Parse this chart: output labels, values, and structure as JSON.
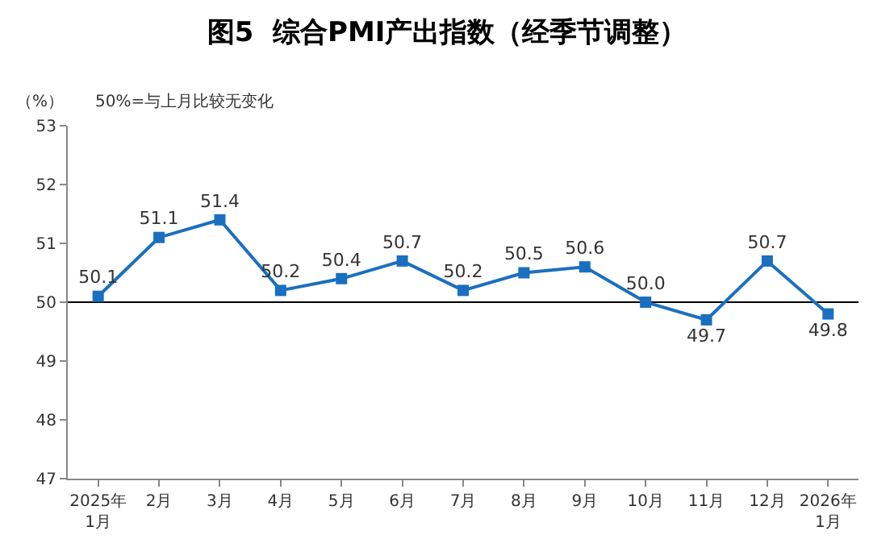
{
  "chart_data": {
    "type": "line",
    "title": "图5  综合PMI产出指数（经季节调整）",
    "ylabel": "（%）",
    "subtitle": "50%=与上月比较无变化",
    "categories": [
      "2025年\n1月",
      "2月",
      "3月",
      "4月",
      "5月",
      "6月",
      "7月",
      "8月",
      "9月",
      "10月",
      "11月",
      "12月",
      "2026年\n1月"
    ],
    "series": [
      {
        "color": "#1a6fc0",
        "values": [
          50.1,
          51.1,
          51.4,
          50.2,
          50.4,
          50.7,
          50.2,
          50.5,
          50.6,
          50.0,
          49.7,
          50.7,
          49.8
        ],
        "value_labels": [
          "50.1",
          "51.1",
          "51.4",
          "50.2",
          "50.4",
          "50.7",
          "50.2",
          "50.5",
          "50.6",
          "50.0",
          "49.7",
          "50.7",
          "49.8"
        ]
      }
    ],
    "ylim": [
      47,
      53
    ],
    "yticks": [
      47,
      48,
      49,
      50,
      51,
      52,
      53
    ],
    "ref_lines": [
      {
        "axis": "y",
        "value": 50,
        "color": "#000000",
        "line_style": "solid"
      }
    ],
    "grid": false,
    "legend": false,
    "marker": "square",
    "line_style": "solid"
  }
}
